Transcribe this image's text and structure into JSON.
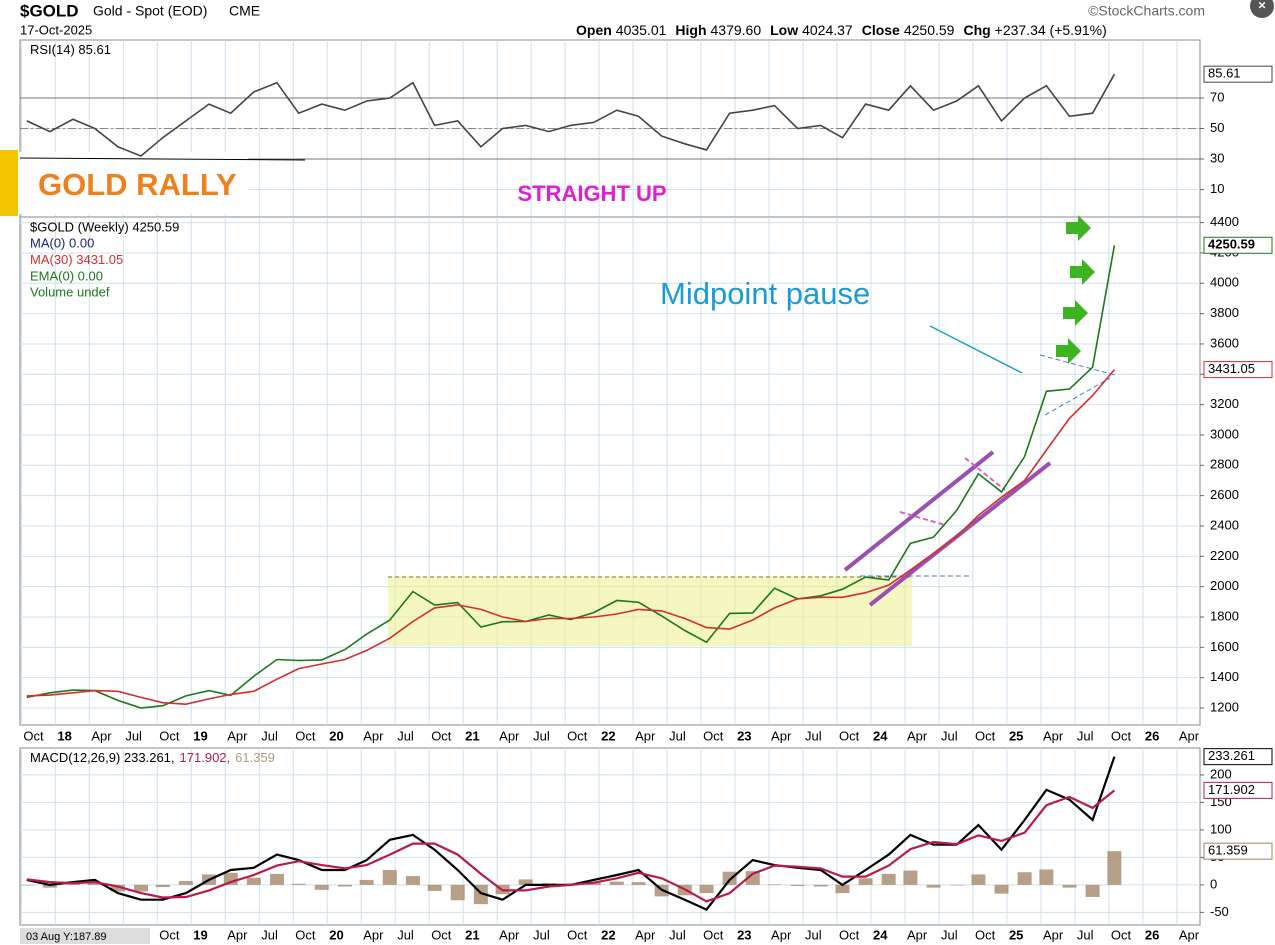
{
  "header": {
    "symbol": "$GOLD",
    "name": "Gold - Spot (EOD)",
    "exchange": "CME",
    "source": "©StockCharts.com",
    "date": "17-Oct-2025",
    "stats": [
      [
        "Open",
        "4035.01"
      ],
      [
        "High",
        "4379.60"
      ],
      [
        "Low",
        "4024.37"
      ],
      [
        "Close",
        "4250.59"
      ],
      [
        "Chg",
        "+237.34 (+5.91%)"
      ]
    ],
    "cursor": "03 Aug Y:187.89"
  },
  "annotations": [
    "GOLD RALLY",
    "STRAIGHT UP",
    "Midpoint pause"
  ],
  "chart_data": [
    {
      "type": "line",
      "legend": [
        {
          "text": "RSI(14) 85.61",
          "color": "#000000"
        }
      ],
      "legend_layout": "row",
      "x": [
        2017.79,
        2017.96,
        2018.13,
        2018.29,
        2018.46,
        2018.63,
        2018.79,
        2018.96,
        2019.13,
        2019.29,
        2019.46,
        2019.63,
        2019.79,
        2019.96,
        2020.13,
        2020.29,
        2020.46,
        2020.63,
        2020.79,
        2020.96,
        2021.13,
        2021.29,
        2021.46,
        2021.63,
        2021.79,
        2021.96,
        2022.13,
        2022.29,
        2022.46,
        2022.63,
        2022.79,
        2022.96,
        2023.13,
        2023.29,
        2023.46,
        2023.63,
        2023.79,
        2023.96,
        2024.13,
        2024.29,
        2024.46,
        2024.63,
        2024.79,
        2024.96,
        2025.13,
        2025.29,
        2025.46,
        2025.63,
        2025.79
      ],
      "series": [
        {
          "color": "#444444",
          "values": [
            55,
            48,
            56,
            50,
            38,
            32,
            44,
            55,
            66,
            60,
            74,
            80,
            60,
            66,
            62,
            68,
            70,
            80,
            52,
            55,
            38,
            50,
            52,
            48,
            52,
            54,
            62,
            58,
            45,
            40,
            36,
            60,
            62,
            65,
            50,
            52,
            44,
            66,
            62,
            78,
            62,
            68,
            78,
            55,
            70,
            78,
            58,
            60,
            85.61
          ]
        }
      ],
      "xlim": [
        2017.74,
        2026.42
      ],
      "ylim": [
        -8,
        108
      ],
      "yticks": [
        10,
        30,
        50,
        70
      ],
      "ref_lines": [
        70,
        50,
        30
      ],
      "grid": true
    },
    {
      "type": "line",
      "legend": [
        {
          "text": "$GOLD (Weekly) 4250.59",
          "color": "#000000"
        },
        {
          "text": "MA(0) 0.00",
          "color": "#1a237e"
        },
        {
          "text": "MA(30) 3431.05",
          "color": "#d32f2f"
        },
        {
          "text": "EMA(0) 0.00",
          "color": "#1b7a1b"
        },
        {
          "text": "Volume undef",
          "color": "#1b7a1b"
        }
      ],
      "legend_layout": "column",
      "x": [
        2017.79,
        2017.96,
        2018.13,
        2018.29,
        2018.46,
        2018.63,
        2018.79,
        2018.96,
        2019.13,
        2019.29,
        2019.46,
        2019.63,
        2019.79,
        2019.96,
        2020.13,
        2020.29,
        2020.46,
        2020.63,
        2020.79,
        2020.96,
        2021.13,
        2021.29,
        2021.46,
        2021.63,
        2021.79,
        2021.96,
        2022.13,
        2022.29,
        2022.46,
        2022.63,
        2022.79,
        2022.96,
        2023.13,
        2023.29,
        2023.46,
        2023.63,
        2023.79,
        2023.96,
        2024.13,
        2024.29,
        2024.46,
        2024.63,
        2024.79,
        2024.96,
        2025.13,
        2025.29,
        2025.46,
        2025.63,
        2025.79
      ],
      "series": [
        {
          "color": "#1b7a1b",
          "values": [
            1270,
            1300,
            1318,
            1315,
            1250,
            1200,
            1215,
            1280,
            1315,
            1283,
            1410,
            1520,
            1513,
            1517,
            1585,
            1687,
            1780,
            1968,
            1879,
            1895,
            1734,
            1769,
            1770,
            1813,
            1783,
            1829,
            1909,
            1897,
            1807,
            1711,
            1634,
            1824,
            1827,
            1990,
            1919,
            1940,
            1983,
            2063,
            2044,
            2286,
            2326,
            2503,
            2744,
            2625,
            2858,
            3288,
            3303,
            3447,
            4250.59
          ]
        },
        {
          "color": "#d32f2f",
          "values": [
            1280,
            1285,
            1300,
            1315,
            1310,
            1270,
            1235,
            1225,
            1260,
            1290,
            1310,
            1390,
            1460,
            1490,
            1520,
            1580,
            1660,
            1770,
            1860,
            1880,
            1850,
            1800,
            1770,
            1790,
            1790,
            1800,
            1820,
            1850,
            1840,
            1790,
            1730,
            1720,
            1780,
            1860,
            1920,
            1930,
            1930,
            1960,
            2010,
            2110,
            2220,
            2330,
            2470,
            2590,
            2700,
            2900,
            3110,
            3260,
            3431.05
          ]
        }
      ],
      "xlim": [
        2017.74,
        2026.42
      ],
      "ylim": [
        1088,
        4437
      ],
      "yticks": [
        1200,
        1400,
        1600,
        1800,
        2000,
        2200,
        2400,
        2600,
        2800,
        3000,
        3200,
        3400,
        3600,
        3800,
        4000,
        4200,
        4400
      ],
      "grid": true,
      "xticks": [
        {
          "value": 2017.75,
          "label": "Oct"
        },
        {
          "value": 2018,
          "label": "18"
        },
        {
          "value": 2018.25,
          "label": "Apr"
        },
        {
          "value": 2018.5,
          "label": "Jul"
        },
        {
          "value": 2018.75,
          "label": "Oct"
        },
        {
          "value": 2019,
          "label": "19"
        },
        {
          "value": 2019.25,
          "label": "Apr"
        },
        {
          "value": 2019.5,
          "label": "Jul"
        },
        {
          "value": 2019.75,
          "label": "Oct"
        },
        {
          "value": 2020,
          "label": "20"
        },
        {
          "value": 2020.25,
          "label": "Apr"
        },
        {
          "value": 2020.5,
          "label": "Jul"
        },
        {
          "value": 2020.75,
          "label": "Oct"
        },
        {
          "value": 2021,
          "label": "21"
        },
        {
          "value": 2021.25,
          "label": "Apr"
        },
        {
          "value": 2021.5,
          "label": "Jul"
        },
        {
          "value": 2021.75,
          "label": "Oct"
        },
        {
          "value": 2022,
          "label": "22"
        },
        {
          "value": 2022.25,
          "label": "Apr"
        },
        {
          "value": 2022.5,
          "label": "Jul"
        },
        {
          "value": 2022.75,
          "label": "Oct"
        },
        {
          "value": 2023,
          "label": "23"
        },
        {
          "value": 2023.25,
          "label": "Apr"
        },
        {
          "value": 2023.5,
          "label": "Jul"
        },
        {
          "value": 2023.75,
          "label": "Oct"
        },
        {
          "value": 2024,
          "label": "24"
        },
        {
          "value": 2024.25,
          "label": "Apr"
        },
        {
          "value": 2024.5,
          "label": "Jul"
        },
        {
          "value": 2024.75,
          "label": "Oct"
        },
        {
          "value": 2025,
          "label": "25"
        },
        {
          "value": 2025.25,
          "label": "Apr"
        },
        {
          "value": 2025.5,
          "label": "Jul"
        },
        {
          "value": 2025.75,
          "label": "Oct"
        },
        {
          "value": 2026,
          "label": "26"
        },
        {
          "value": 2026.25,
          "label": "Apr"
        }
      ]
    },
    {
      "type": "line",
      "legend": [
        {
          "text": "MACD(12,26,9) 233.261,",
          "color": "#000000"
        },
        {
          "text": "171.902,",
          "color": "#b71c4a"
        },
        {
          "text": "61.359",
          "color": "#b09a7a"
        }
      ],
      "legend_layout": "row",
      "x": [
        2017.79,
        2017.96,
        2018.13,
        2018.29,
        2018.46,
        2018.63,
        2018.79,
        2018.96,
        2019.13,
        2019.29,
        2019.46,
        2019.63,
        2019.79,
        2019.96,
        2020.13,
        2020.29,
        2020.46,
        2020.63,
        2020.79,
        2020.96,
        2021.13,
        2021.29,
        2021.46,
        2021.63,
        2021.79,
        2021.96,
        2022.13,
        2022.29,
        2022.46,
        2022.63,
        2022.79,
        2022.96,
        2023.13,
        2023.29,
        2023.46,
        2023.63,
        2023.79,
        2023.96,
        2024.13,
        2024.29,
        2024.46,
        2024.63,
        2024.79,
        2024.96,
        2025.13,
        2025.29,
        2025.46,
        2025.63,
        2025.79
      ],
      "series": [
        {
          "color": "#a08060",
          "kind": "bar",
          "values": [
            -1,
            -5,
            2,
            4,
            -12,
            -12,
            -4,
            7,
            19,
            22,
            13,
            20,
            2,
            -9,
            -3,
            9,
            27,
            16,
            -11,
            -28,
            -35,
            -17,
            10,
            3,
            0,
            5,
            6,
            5,
            -21,
            -19,
            -15,
            24,
            25,
            1,
            -2,
            -3,
            -15,
            12,
            20,
            26,
            -5,
            -1,
            19,
            -16,
            23,
            28,
            -5,
            -22,
            61.359
          ]
        },
        {
          "color": "#000000",
          "values": [
            9,
            0,
            5,
            9,
            -15,
            -27,
            -27,
            -15,
            9,
            27,
            31,
            55,
            45,
            27,
            27,
            45,
            82,
            91,
            64,
            27,
            -15,
            -27,
            0,
            0,
            0,
            9,
            18,
            27,
            -9,
            -27,
            -45,
            9,
            45,
            36,
            31,
            27,
            0,
            27,
            55,
            91,
            73,
            73,
            109,
            64,
            118,
            173,
            155,
            118,
            233.261
          ]
        },
        {
          "color": "#b71c4a",
          "values": [
            10,
            5,
            3,
            5,
            -3,
            -15,
            -23,
            -22,
            -10,
            5,
            18,
            35,
            43,
            36,
            30,
            36,
            55,
            75,
            75,
            55,
            20,
            -10,
            -10,
            -3,
            0,
            4,
            12,
            22,
            12,
            -8,
            -30,
            -15,
            20,
            35,
            33,
            30,
            15,
            15,
            35,
            65,
            78,
            74,
            90,
            80,
            95,
            145,
            160,
            140,
            171.902
          ]
        }
      ],
      "xlim": [
        2017.74,
        2026.42
      ],
      "ylim": [
        -73,
        249
      ],
      "yticks": [
        -50,
        0,
        50,
        100,
        150,
        200
      ],
      "grid": true
    }
  ]
}
